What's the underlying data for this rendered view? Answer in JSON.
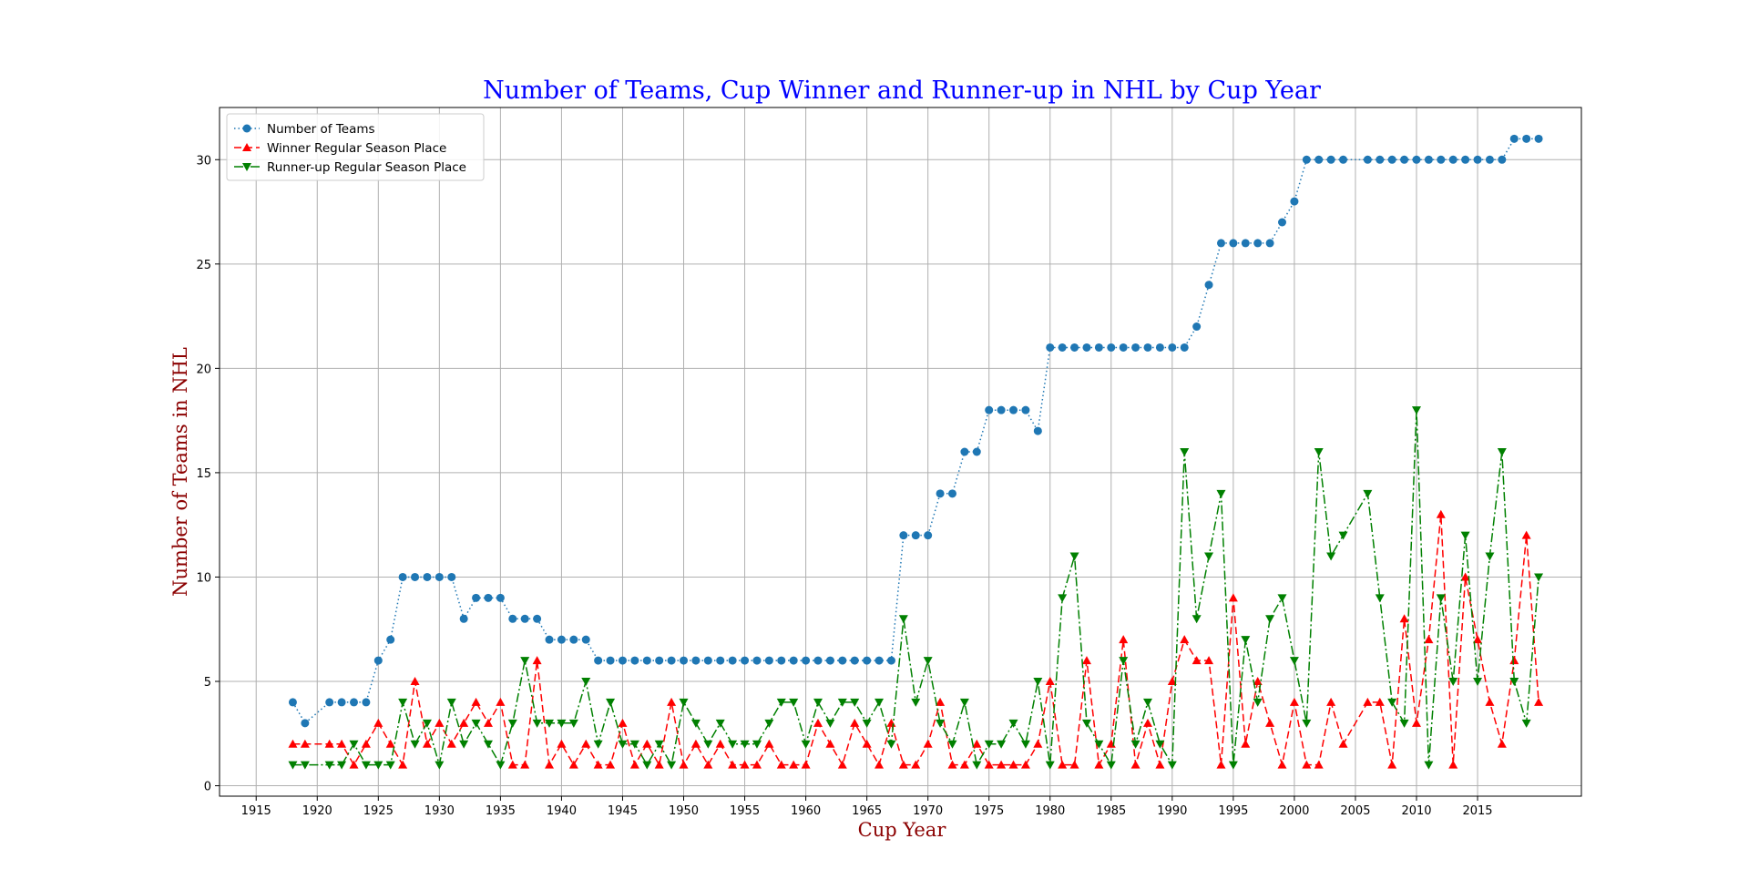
{
  "chart_data": {
    "type": "line",
    "title": "Number of Teams, Cup Winner and Runner-up in NHL by Cup Year",
    "xlabel": "Cup Year",
    "ylabel": "Number of Teams in NHL",
    "xlim": [
      1912,
      2023.5
    ],
    "ylim": [
      -0.5,
      32.5
    ],
    "xticks": [
      1915,
      1920,
      1925,
      1930,
      1935,
      1940,
      1945,
      1950,
      1955,
      1960,
      1965,
      1970,
      1975,
      1980,
      1985,
      1990,
      1995,
      2000,
      2005,
      2010,
      2015
    ],
    "yticks": [
      0,
      5,
      10,
      15,
      20,
      25,
      30
    ],
    "grid": true,
    "legend_position": "upper-left",
    "colors": {
      "title": "#0000ff",
      "axis_label": "#8b0000"
    },
    "series": [
      {
        "name": "Number of Teams",
        "color": "#1f77b4",
        "linestyle": "dotted",
        "marker": "circle",
        "x": [
          1918,
          1919,
          1921,
          1922,
          1923,
          1924,
          1925,
          1926,
          1927,
          1928,
          1929,
          1930,
          1931,
          1932,
          1933,
          1934,
          1935,
          1936,
          1937,
          1938,
          1939,
          1940,
          1941,
          1942,
          1943,
          1944,
          1945,
          1946,
          1947,
          1948,
          1949,
          1950,
          1951,
          1952,
          1953,
          1954,
          1955,
          1956,
          1957,
          1958,
          1959,
          1960,
          1961,
          1962,
          1963,
          1964,
          1965,
          1966,
          1967,
          1968,
          1969,
          1970,
          1971,
          1972,
          1973,
          1974,
          1975,
          1976,
          1977,
          1978,
          1979,
          1980,
          1981,
          1982,
          1983,
          1984,
          1985,
          1986,
          1987,
          1988,
          1989,
          1990,
          1991,
          1992,
          1993,
          1994,
          1995,
          1996,
          1997,
          1998,
          1999,
          2000,
          2001,
          2002,
          2003,
          2004,
          2006,
          2007,
          2008,
          2009,
          2010,
          2011,
          2012,
          2013,
          2014,
          2015,
          2016,
          2017,
          2018,
          2019,
          2020
        ],
        "y": [
          4,
          3,
          4,
          4,
          4,
          4,
          6,
          7,
          10,
          10,
          10,
          10,
          10,
          8,
          9,
          9,
          9,
          8,
          8,
          8,
          7,
          7,
          7,
          7,
          6,
          6,
          6,
          6,
          6,
          6,
          6,
          6,
          6,
          6,
          6,
          6,
          6,
          6,
          6,
          6,
          6,
          6,
          6,
          6,
          6,
          6,
          6,
          6,
          6,
          12,
          12,
          12,
          14,
          14,
          16,
          16,
          18,
          18,
          18,
          18,
          17,
          21,
          21,
          21,
          21,
          21,
          21,
          21,
          21,
          21,
          21,
          21,
          21,
          22,
          24,
          26,
          26,
          26,
          26,
          26,
          27,
          28,
          30,
          30,
          30,
          30,
          30,
          30,
          30,
          30,
          30,
          30,
          30,
          30,
          30,
          30,
          30,
          30,
          31,
          31,
          31
        ]
      },
      {
        "name": "Winner Regular Season Place",
        "color": "#ff0000",
        "linestyle": "dashed",
        "marker": "triangle-up",
        "x": [
          1918,
          1919,
          1921,
          1922,
          1923,
          1924,
          1925,
          1926,
          1927,
          1928,
          1929,
          1930,
          1931,
          1932,
          1933,
          1934,
          1935,
          1936,
          1937,
          1938,
          1939,
          1940,
          1941,
          1942,
          1943,
          1944,
          1945,
          1946,
          1947,
          1948,
          1949,
          1950,
          1951,
          1952,
          1953,
          1954,
          1955,
          1956,
          1957,
          1958,
          1959,
          1960,
          1961,
          1962,
          1963,
          1964,
          1965,
          1966,
          1967,
          1968,
          1969,
          1970,
          1971,
          1972,
          1973,
          1974,
          1975,
          1976,
          1977,
          1978,
          1979,
          1980,
          1981,
          1982,
          1983,
          1984,
          1985,
          1986,
          1987,
          1988,
          1989,
          1990,
          1991,
          1992,
          1993,
          1994,
          1995,
          1996,
          1997,
          1998,
          1999,
          2000,
          2001,
          2002,
          2003,
          2004,
          2006,
          2007,
          2008,
          2009,
          2010,
          2011,
          2012,
          2013,
          2014,
          2015,
          2016,
          2017,
          2018,
          2019,
          2020
        ],
        "y": [
          2,
          2,
          2,
          2,
          1,
          2,
          3,
          2,
          1,
          5,
          2,
          3,
          2,
          3,
          4,
          3,
          4,
          1,
          1,
          6,
          1,
          2,
          1,
          2,
          1,
          1,
          3,
          1,
          2,
          1,
          4,
          1,
          2,
          1,
          2,
          1,
          1,
          1,
          2,
          1,
          1,
          1,
          3,
          2,
          1,
          3,
          2,
          1,
          3,
          1,
          1,
          2,
          4,
          1,
          1,
          2,
          1,
          1,
          1,
          1,
          2,
          5,
          1,
          1,
          6,
          1,
          2,
          7,
          1,
          3,
          1,
          5,
          7,
          6,
          6,
          1,
          9,
          2,
          5,
          3,
          1,
          4,
          1,
          1,
          4,
          2,
          4,
          4,
          1,
          8,
          3,
          7,
          13,
          1,
          10,
          7,
          4,
          2,
          6,
          12,
          4
        ]
      },
      {
        "name": "Runner-up Regular Season Place",
        "color": "#008000",
        "linestyle": "dashdot",
        "marker": "triangle-down",
        "x": [
          1918,
          1919,
          1921,
          1922,
          1923,
          1924,
          1925,
          1926,
          1927,
          1928,
          1929,
          1930,
          1931,
          1932,
          1933,
          1934,
          1935,
          1936,
          1937,
          1938,
          1939,
          1940,
          1941,
          1942,
          1943,
          1944,
          1945,
          1946,
          1947,
          1948,
          1949,
          1950,
          1951,
          1952,
          1953,
          1954,
          1955,
          1956,
          1957,
          1958,
          1959,
          1960,
          1961,
          1962,
          1963,
          1964,
          1965,
          1966,
          1967,
          1968,
          1969,
          1970,
          1971,
          1972,
          1973,
          1974,
          1975,
          1976,
          1977,
          1978,
          1979,
          1980,
          1981,
          1982,
          1983,
          1984,
          1985,
          1986,
          1987,
          1988,
          1989,
          1990,
          1991,
          1992,
          1993,
          1994,
          1995,
          1996,
          1997,
          1998,
          1999,
          2000,
          2001,
          2002,
          2003,
          2004,
          2006,
          2007,
          2008,
          2009,
          2010,
          2011,
          2012,
          2013,
          2014,
          2015,
          2016,
          2017,
          2018,
          2019,
          2020
        ],
        "y": [
          1,
          1,
          1,
          1,
          2,
          1,
          1,
          1,
          4,
          2,
          3,
          1,
          4,
          2,
          3,
          2,
          1,
          3,
          6,
          3,
          3,
          3,
          3,
          5,
          2,
          4,
          2,
          2,
          1,
          2,
          1,
          4,
          3,
          2,
          3,
          2,
          2,
          2,
          3,
          4,
          4,
          2,
          4,
          3,
          4,
          4,
          3,
          4,
          2,
          8,
          4,
          6,
          3,
          2,
          4,
          1,
          2,
          2,
          3,
          2,
          5,
          1,
          9,
          11,
          3,
          2,
          1,
          6,
          2,
          4,
          2,
          1,
          16,
          8,
          11,
          14,
          1,
          7,
          4,
          8,
          9,
          6,
          3,
          16,
          11,
          12,
          14,
          9,
          4,
          3,
          18,
          1,
          9,
          5,
          12,
          5,
          11,
          16,
          5,
          3,
          10
        ]
      }
    ]
  }
}
